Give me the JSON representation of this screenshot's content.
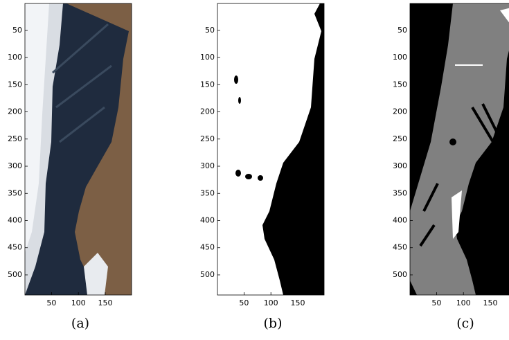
{
  "panels": [
    {
      "caption": "(a)",
      "xlim": [
        0.5,
        199
      ],
      "ylim": [
        0.5,
        537
      ],
      "xticks": [
        50,
        100,
        150
      ],
      "yticks": [
        50,
        100,
        150,
        200,
        250,
        300,
        350,
        400,
        450,
        500
      ]
    },
    {
      "caption": "(b)",
      "xlim": [
        0.5,
        199
      ],
      "ylim": [
        0.5,
        537
      ],
      "xticks": [
        50,
        100,
        150
      ],
      "yticks": [
        50,
        100,
        150,
        200,
        250,
        300,
        350,
        400,
        450,
        500
      ]
    },
    {
      "caption": "(c)",
      "xlim": [
        0.5,
        199
      ],
      "ylim": [
        0.5,
        537
      ],
      "xticks": [
        50,
        100,
        150
      ],
      "yticks": [
        50,
        100,
        150,
        200,
        250,
        300,
        350,
        400,
        450,
        500
      ]
    }
  ]
}
